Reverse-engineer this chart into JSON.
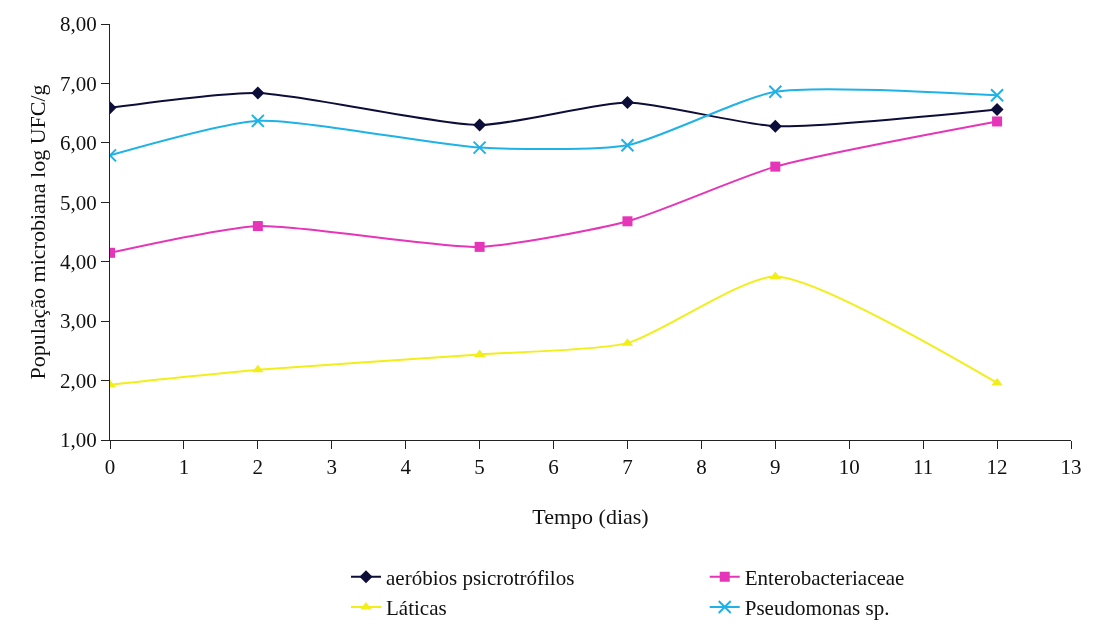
{
  "chart_data": {
    "type": "line",
    "xlabel": "Tempo (dias)",
    "ylabel": "População microbiana log UFC/g",
    "x": [
      0,
      2,
      5,
      7,
      9,
      12
    ],
    "series": [
      {
        "name": "aeróbios psicrotrófilos",
        "color": "#0d0d3a",
        "marker": "diamond",
        "values": [
          6.59,
          6.84,
          6.3,
          6.68,
          6.28,
          6.56
        ]
      },
      {
        "name": "Enterobacteriaceae",
        "color": "#e535b8",
        "marker": "square",
        "values": [
          4.15,
          4.6,
          4.25,
          4.68,
          5.6,
          6.36
        ]
      },
      {
        "name": "Láticas",
        "color": "#f2ee1a",
        "marker": "triangle",
        "values": [
          1.93,
          2.18,
          2.44,
          2.63,
          3.75,
          1.96
        ]
      },
      {
        "name": "Pseudomonas sp.",
        "color": "#1fb2e6",
        "marker": "cross",
        "values": [
          5.79,
          6.37,
          5.92,
          5.96,
          6.86,
          6.8
        ]
      }
    ],
    "xlim": [
      0,
      13
    ],
    "xticks": [
      0,
      1,
      2,
      3,
      4,
      5,
      6,
      7,
      8,
      9,
      10,
      11,
      12,
      13
    ],
    "ylim": [
      1,
      8
    ],
    "yticks": [
      {
        "value": 1,
        "label": "1,00"
      },
      {
        "value": 2,
        "label": "2,00"
      },
      {
        "value": 3,
        "label": "3,00"
      },
      {
        "value": 4,
        "label": "4,00"
      },
      {
        "value": 5,
        "label": "5,00"
      },
      {
        "value": 6,
        "label": "6,00"
      },
      {
        "value": 7,
        "label": "7,00"
      },
      {
        "value": 8,
        "label": "8,00"
      }
    ],
    "legend": "bottom",
    "line_style": "solid"
  }
}
